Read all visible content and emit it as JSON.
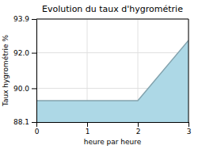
{
  "chart_data": {
    "type": "area",
    "title": "Evolution du taux d'hygrométrie",
    "xlabel": "heure par heure",
    "ylabel": "Taux hygrométrie %",
    "x": [
      0,
      2,
      3
    ],
    "values": [
      89.3,
      89.3,
      92.7
    ],
    "xlim": [
      0,
      3
    ],
    "ylim": [
      88.1,
      93.9
    ],
    "xticks": [
      0,
      1,
      2,
      3
    ],
    "yticks": [
      88.1,
      {
        "value": 90,
        "label": "90.0"
      },
      {
        "value": 92,
        "label": "92.0"
      },
      93.9
    ],
    "color": "#add8e6",
    "grid": true
  }
}
